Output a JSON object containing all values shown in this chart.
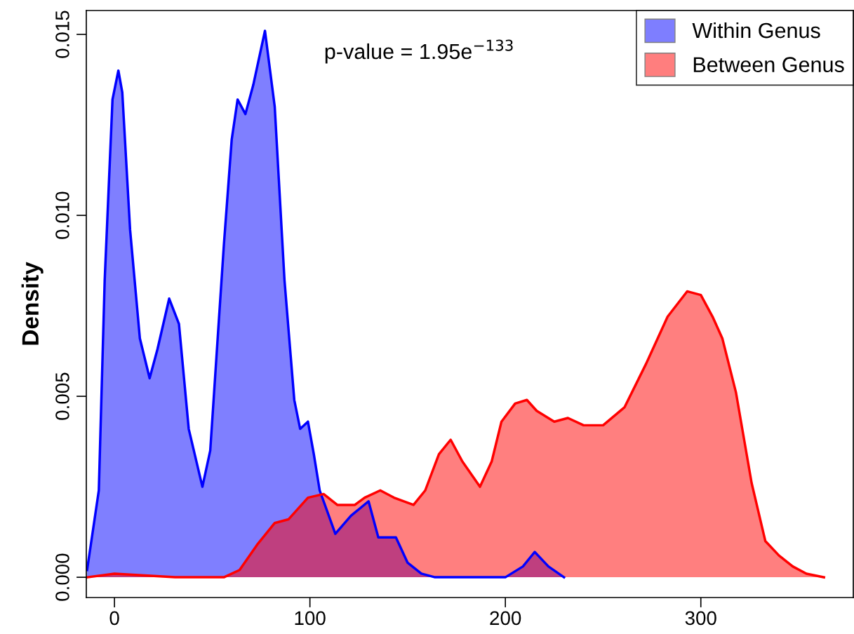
{
  "chart_data": {
    "type": "area",
    "ylabel": "Density",
    "xlim": [
      -14.4,
      378
    ],
    "ylim": [
      -0.00056,
      0.01566
    ],
    "xticks": [
      0,
      100,
      200,
      300
    ],
    "yticks": [
      {
        "value": 0,
        "label": "0.000"
      },
      {
        "value": 0.005,
        "label": "0.005"
      },
      {
        "value": 0.01,
        "label": "0.010"
      },
      {
        "value": 0.015,
        "label": "0.015"
      }
    ],
    "annotations": [
      "p-value = 1.95e$^{−133}$"
    ],
    "legend": "top right",
    "grid": false,
    "series": [
      {
        "name": "Within Genus",
        "color": "#0000ff",
        "x": [
          -14,
          -8,
          -5,
          -1,
          2,
          4,
          8,
          13,
          18,
          22,
          28,
          33,
          38,
          45,
          49,
          56,
          60,
          63,
          67,
          71,
          77,
          82,
          87,
          92,
          95,
          99,
          102,
          105,
          113,
          121,
          130,
          135,
          144,
          150,
          157,
          164,
          200,
          209,
          215,
          222,
          230
        ],
        "values": [
          0.0002,
          0.0024,
          0.0082,
          0.0132,
          0.014,
          0.0134,
          0.0096,
          0.0066,
          0.0055,
          0.0063,
          0.0077,
          0.007,
          0.0041,
          0.0025,
          0.0035,
          0.0092,
          0.0121,
          0.0132,
          0.0128,
          0.0136,
          0.0151,
          0.013,
          0.0082,
          0.0049,
          0.0041,
          0.0043,
          0.0034,
          0.0024,
          0.0012,
          0.0017,
          0.0021,
          0.0011,
          0.0011,
          0.0004,
          0.0001,
          0,
          0,
          0.0003,
          0.0007,
          0.0003,
          0
        ]
      },
      {
        "name": "Between Genus",
        "color": "#ff0000",
        "x": [
          -14,
          0,
          31,
          56,
          64,
          73,
          82,
          89,
          94,
          99,
          107,
          114,
          123,
          128,
          136,
          143,
          153,
          159,
          166,
          172,
          178,
          187,
          193,
          198,
          205,
          211,
          216,
          225,
          232,
          240,
          250,
          261,
          272,
          283,
          293,
          300,
          306,
          311,
          318,
          326,
          333,
          340,
          347,
          354,
          363
        ],
        "values": [
          0,
          0.0001,
          0,
          0,
          0.0002,
          0.0009,
          0.0015,
          0.0016,
          0.0019,
          0.0022,
          0.0023,
          0.002,
          0.002,
          0.0022,
          0.0024,
          0.0022,
          0.002,
          0.0024,
          0.0034,
          0.0038,
          0.0032,
          0.0025,
          0.0032,
          0.0043,
          0.0048,
          0.0049,
          0.0046,
          0.0043,
          0.0044,
          0.0042,
          0.0042,
          0.0047,
          0.0059,
          0.0072,
          0.0079,
          0.0078,
          0.0072,
          0.0066,
          0.0051,
          0.0026,
          0.001,
          0.0006,
          0.0003,
          0.0001,
          0
        ]
      }
    ]
  }
}
